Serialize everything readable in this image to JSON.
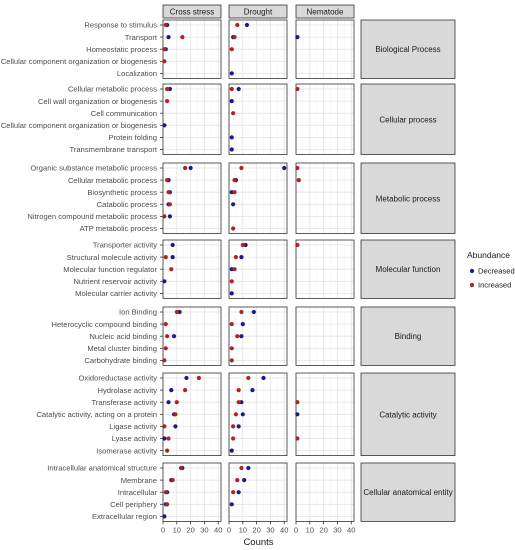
{
  "chart_data": {
    "type": "scatter",
    "x_label": "Counts",
    "x_ticks": [
      0,
      10,
      20,
      30,
      40
    ],
    "x_range": [
      0,
      42
    ],
    "grid": true,
    "facet_columns": [
      "Cross stress",
      "Drought",
      "Nematode"
    ],
    "legend": {
      "title": "Abundance",
      "position": "right",
      "entries": [
        {
          "name": "Decreased",
          "color": "#1a1a8c"
        },
        {
          "name": "Increased",
          "color": "#b22222"
        }
      ]
    },
    "groups": [
      {
        "name": "Biological Process",
        "rows": [
          {
            "label": "Response to stimulus",
            "values": {
              "Cross stress": {
                "dec": 3,
                "inc": 2
              },
              "Drought": {
                "dec": 13,
                "inc": 6
              },
              "Nematode": {}
            }
          },
          {
            "label": "Transport",
            "values": {
              "Cross stress": {
                "dec": 4,
                "inc": 14
              },
              "Drought": {
                "dec": 3,
                "inc": 4
              },
              "Nematode": {
                "dec": 1
              }
            }
          },
          {
            "label": "Homeostatic process",
            "values": {
              "Cross stress": {
                "dec": 2,
                "inc": 1
              },
              "Drought": {
                "inc": 2
              },
              "Nematode": {}
            }
          },
          {
            "label": "Cellular component organization or biogenesis",
            "values": {
              "Cross stress": {
                "inc": 1
              },
              "Drought": {},
              "Nematode": {}
            }
          },
          {
            "label": "Localization",
            "values": {
              "Cross stress": {},
              "Drought": {
                "dec": 2
              },
              "Nematode": {}
            }
          }
        ]
      },
      {
        "name": "Cellular process",
        "rows": [
          {
            "label": "Cellular metabolic process",
            "values": {
              "Cross stress": {
                "dec": 5,
                "inc": 3
              },
              "Drought": {
                "dec": 7,
                "inc": 2
              },
              "Nematode": {
                "inc": 1
              }
            }
          },
          {
            "label": "Cell wall organization or biogenesis",
            "values": {
              "Cross stress": {
                "inc": 3
              },
              "Drought": {
                "dec": 2
              },
              "Nematode": {}
            }
          },
          {
            "label": "Cell communication",
            "values": {
              "Cross stress": {},
              "Drought": {
                "inc": 3
              },
              "Nematode": {}
            }
          },
          {
            "label": "Cellular component organization or biogenesis",
            "values": {
              "Cross stress": {
                "dec": 1
              },
              "Drought": {},
              "Nematode": {}
            }
          },
          {
            "label": "Protein folding",
            "values": {
              "Cross stress": {},
              "Drought": {
                "dec": 2
              },
              "Nematode": {}
            }
          },
          {
            "label": "Transmembrane transport",
            "values": {
              "Cross stress": {},
              "Drought": {
                "dec": 2
              },
              "Nematode": {}
            }
          }
        ]
      },
      {
        "name": "Metabolic process",
        "rows": [
          {
            "label": "Organic substance metabolic process",
            "values": {
              "Cross stress": {
                "dec": 20,
                "inc": 16
              },
              "Drought": {
                "dec": 40,
                "inc": 9
              },
              "Nematode": {
                "inc": 1
              }
            }
          },
          {
            "label": "Cellular metabolic process",
            "values": {
              "Cross stress": {
                "dec": 4,
                "inc": 3
              },
              "Drought": {
                "dec": 5,
                "inc": 4
              },
              "Nematode": {
                "inc": 2
              }
            }
          },
          {
            "label": "Biosynthetic process",
            "values": {
              "Cross stress": {
                "dec": 5,
                "inc": 4
              },
              "Drought": {
                "dec": 2,
                "inc": 4
              },
              "Nematode": {}
            }
          },
          {
            "label": "Catabolic process",
            "values": {
              "Cross stress": {
                "dec": 4,
                "inc": 5
              },
              "Drought": {
                "dec": 3
              },
              "Nematode": {}
            }
          },
          {
            "label": "Nitrogen compound metabolic process",
            "values": {
              "Cross stress": {
                "dec": 5,
                "inc": 1
              },
              "Drought": {},
              "Nematode": {}
            }
          },
          {
            "label": "ATP metabolic process",
            "values": {
              "Cross stress": {},
              "Drought": {
                "inc": 3
              },
              "Nematode": {}
            }
          }
        ]
      },
      {
        "name": "Molecular function",
        "rows": [
          {
            "label": "Transporter activity",
            "values": {
              "Cross stress": {
                "dec": 7
              },
              "Drought": {
                "dec": 12,
                "inc": 10
              },
              "Nematode": {
                "inc": 1
              }
            }
          },
          {
            "label": "Structural molecule activity",
            "values": {
              "Cross stress": {
                "dec": 7,
                "inc": 2
              },
              "Drought": {
                "dec": 9,
                "inc": 5
              },
              "Nematode": {}
            }
          },
          {
            "label": "Molecular function regulator",
            "values": {
              "Cross stress": {
                "inc": 6
              },
              "Drought": {
                "dec": 2,
                "inc": 4
              },
              "Nematode": {}
            }
          },
          {
            "label": "Nutrient reservoir activity",
            "values": {
              "Cross stress": {
                "dec": 1
              },
              "Drought": {
                "inc": 2
              },
              "Nematode": {}
            }
          },
          {
            "label": "Molecular carrier activity",
            "values": {
              "Cross stress": {},
              "Drought": {
                "dec": 2
              },
              "Nematode": {}
            }
          }
        ]
      },
      {
        "name": "Binding",
        "rows": [
          {
            "label": "Ion Binding",
            "values": {
              "Cross stress": {
                "dec": 12,
                "inc": 10
              },
              "Drought": {
                "dec": 18,
                "inc": 9
              },
              "Nematode": {}
            }
          },
          {
            "label": "Heterocyclic compound binding",
            "values": {
              "Cross stress": {
                "inc": 2
              },
              "Drought": {
                "dec": 10,
                "inc": 2
              },
              "Nematode": {}
            }
          },
          {
            "label": "Nucleic acid binding",
            "values": {
              "Cross stress": {
                "dec": 8,
                "inc": 3
              },
              "Drought": {
                "dec": 9,
                "inc": 6
              },
              "Nematode": {}
            }
          },
          {
            "label": "Metal cluster binding",
            "values": {
              "Cross stress": {
                "inc": 2
              },
              "Drought": {
                "inc": 2
              },
              "Nematode": {}
            }
          },
          {
            "label": "Carbohydrate binding",
            "values": {
              "Cross stress": {
                "inc": 1
              },
              "Drought": {
                "inc": 2
              },
              "Nematode": {}
            }
          }
        ]
      },
      {
        "name": "Catalytic activity",
        "rows": [
          {
            "label": "Oxidoreductase activity",
            "values": {
              "Cross stress": {
                "dec": 17,
                "inc": 26
              },
              "Drought": {
                "dec": 25,
                "inc": 14
              },
              "Nematode": {}
            }
          },
          {
            "label": "Hydrolase activity",
            "values": {
              "Cross stress": {
                "dec": 6,
                "inc": 16
              },
              "Drought": {
                "dec": 17,
                "inc": 7
              },
              "Nematode": {}
            }
          },
          {
            "label": "Transferase activity",
            "values": {
              "Cross stress": {
                "dec": 4,
                "inc": 10
              },
              "Drought": {
                "dec": 9,
                "inc": 7
              },
              "Nematode": {
                "inc": 1
              }
            }
          },
          {
            "label": "Catalytic activity, acting on a protein",
            "values": {
              "Cross stress": {
                "dec": 8,
                "inc": 9
              },
              "Drought": {
                "dec": 10,
                "inc": 5
              },
              "Nematode": {
                "dec": 1
              }
            }
          },
          {
            "label": "Ligase activity",
            "values": {
              "Cross stress": {
                "dec": 9,
                "inc": 1
              },
              "Drought": {
                "dec": 7,
                "inc": 3
              },
              "Nematode": {}
            }
          },
          {
            "label": "Lyase activity",
            "values": {
              "Cross stress": {
                "dec": 1,
                "inc": 4
              },
              "Drought": {
                "inc": 3
              },
              "Nematode": {
                "inc": 1
              }
            }
          },
          {
            "label": "Isomerase activity",
            "values": {
              "Cross stress": {
                "inc": 3
              },
              "Drought": {
                "dec": 2
              },
              "Nematode": {}
            }
          }
        ]
      },
      {
        "name": "Cellular anatomical entity",
        "rows": [
          {
            "label": "Intracellular anatomical structure",
            "values": {
              "Cross stress": {
                "dec": 14,
                "inc": 13
              },
              "Drought": {
                "dec": 14,
                "inc": 9
              },
              "Nematode": {}
            }
          },
          {
            "label": "Membrane",
            "values": {
              "Cross stress": {
                "dec": 6,
                "inc": 7
              },
              "Drought": {
                "dec": 11,
                "inc": 6
              },
              "Nematode": {}
            }
          },
          {
            "label": "Intracellular",
            "values": {
              "Cross stress": {
                "dec": 3,
                "inc": 2
              },
              "Drought": {
                "dec": 7,
                "inc": 3
              },
              "Nematode": {}
            }
          },
          {
            "label": "Cell periphery",
            "values": {
              "Cross stress": {
                "dec": 2,
                "inc": 3
              },
              "Drought": {
                "dec": 2
              },
              "Nematode": {}
            }
          },
          {
            "label": "Extracellular region",
            "values": {
              "Cross stress": {
                "dec": 1
              },
              "Drought": {},
              "Nematode": {}
            }
          }
        ]
      }
    ]
  }
}
